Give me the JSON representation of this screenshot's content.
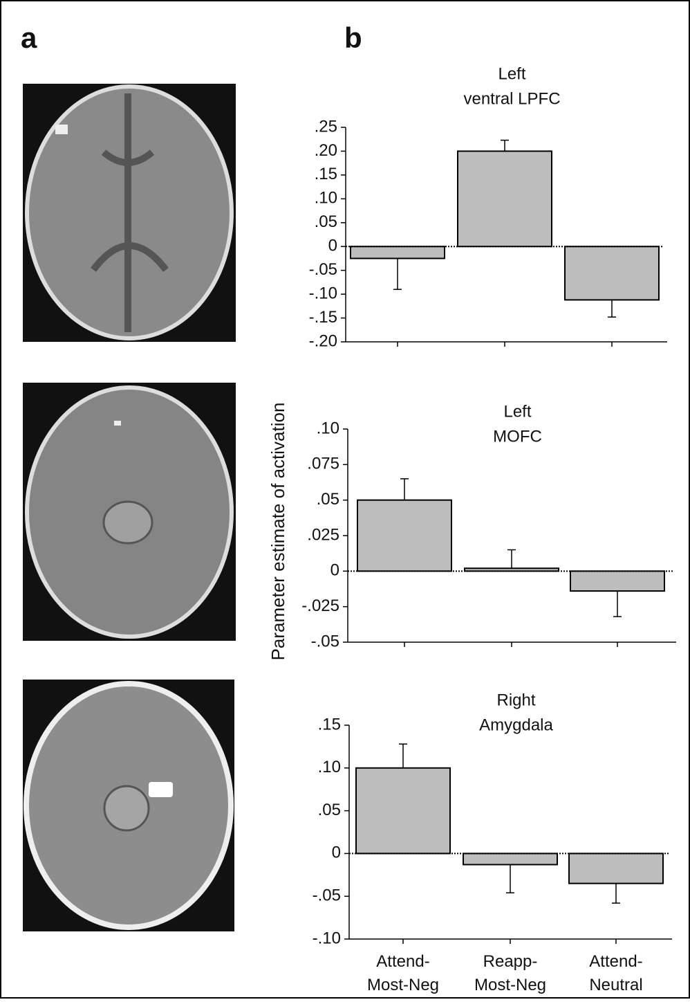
{
  "panels": [
    "a",
    "b"
  ],
  "chart_data": [
    {
      "type": "bar",
      "title": [
        "Left",
        "ventral LPFC"
      ],
      "categories": [
        null,
        null,
        null
      ],
      "values": [
        -0.025,
        0.2,
        -0.112
      ],
      "errors": [
        0.065,
        0.023,
        0.036
      ],
      "color": "#bdbdbd",
      "ylim": [
        -0.2,
        0.25
      ],
      "yticks": [
        {
          "value": -0.2,
          "label": "-.20"
        },
        {
          "value": -0.15,
          "label": "-.15"
        },
        {
          "value": -0.1,
          "label": "-.10"
        },
        {
          "value": -0.05,
          "label": "-.05"
        },
        0,
        {
          "value": 0.05,
          "label": ".05"
        },
        {
          "value": 0.1,
          "label": ".10"
        },
        {
          "value": 0.15,
          "label": ".15"
        },
        {
          "value": 0.2,
          "label": ".20"
        },
        {
          "value": 0.25,
          "label": ".25"
        }
      ]
    },
    {
      "type": "bar",
      "title": [
        "Left",
        "MOFC"
      ],
      "ylabel": "Parameter estimate of activation",
      "categories": [
        null,
        null,
        null
      ],
      "values": [
        0.05,
        0.002,
        -0.014
      ],
      "errors": [
        0.015,
        0.013,
        0.018
      ],
      "color": "#bdbdbd",
      "ylim": [
        -0.05,
        0.1
      ],
      "yticks": [
        {
          "value": -0.05,
          "label": "-.05"
        },
        {
          "value": -0.025,
          "label": "-.025"
        },
        0,
        {
          "value": 0.025,
          "label": ".025"
        },
        {
          "value": 0.05,
          "label": ".05"
        },
        {
          "value": 0.075,
          "label": ".075"
        },
        {
          "value": 0.1,
          "label": ".10"
        }
      ]
    },
    {
      "type": "bar",
      "title": [
        "Right",
        "Amygdala"
      ],
      "categories": [
        "Attend-Most-Neg",
        "Reapp-Most-Neg",
        "Attend-Neutral"
      ],
      "values": [
        0.1,
        -0.013,
        -0.035
      ],
      "errors": [
        0.028,
        0.033,
        0.023
      ],
      "color": "#bdbdbd",
      "ylim": [
        -0.1,
        0.15
      ],
      "yticks": [
        {
          "value": -0.1,
          "label": "-.10"
        },
        {
          "value": -0.05,
          "label": "-.05"
        },
        0,
        {
          "value": 0.05,
          "label": ".05"
        },
        {
          "value": 0.1,
          "label": ".10"
        },
        {
          "value": 0.15,
          "label": ".15"
        }
      ]
    }
  ]
}
